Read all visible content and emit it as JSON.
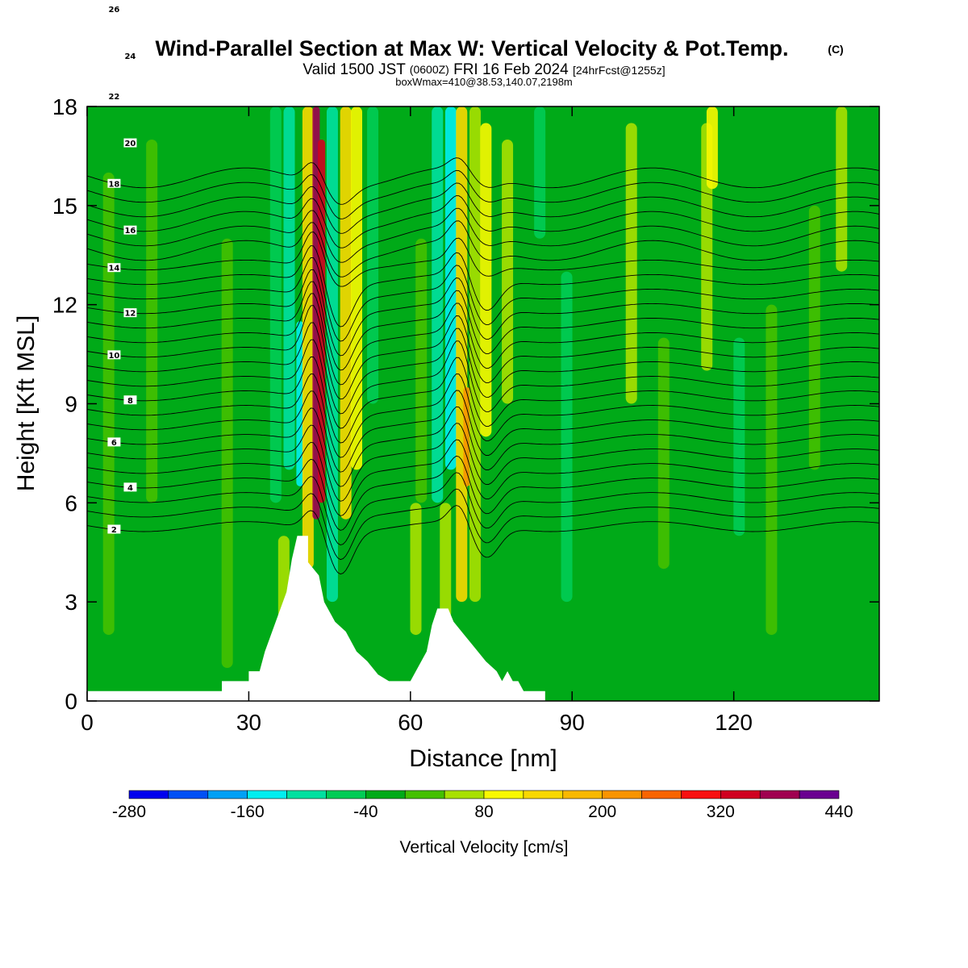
{
  "title": "Wind-Parallel Section at Max W: Vertical Velocity & Pot.Temp.",
  "title_mark": "(C)",
  "subtitle_valid": "Valid 1500 JST",
  "subtitle_z": "(0600Z)",
  "subtitle_date": "FRI 16 Feb 2024",
  "subtitle_fcst": "[24hrFcst@1255z]",
  "subtitle_box": "boxWmax=410@38.53,140.07,2198m",
  "colorbar": {
    "title": "Vertical Velocity [cm/s]",
    "tick_labels": [
      "-280",
      "-160",
      "-40",
      "80",
      "200",
      "320",
      "440"
    ],
    "colors": [
      "#0000ee",
      "#0050f5",
      "#00a0f5",
      "#00eef0",
      "#00e0a0",
      "#00cc55",
      "#00aa18",
      "#44c000",
      "#a8e000",
      "#f8f800",
      "#f8d800",
      "#f8b800",
      "#f89400",
      "#f86400",
      "#f81010",
      "#d00020",
      "#a00050",
      "#6a0090"
    ]
  },
  "chart_data": {
    "type": "heatmap",
    "title": "Wind-Parallel Section at Max W: Vertical Velocity & Pot.Temp.",
    "xlabel": "Distance [nm]",
    "ylabel": "Height [Kft MSL]",
    "xlim": [
      0,
      147
    ],
    "ylim": [
      0,
      18
    ],
    "x_ticks": [
      0,
      30,
      60,
      90,
      120
    ],
    "y_ticks": [
      0,
      3,
      6,
      9,
      12,
      15,
      18
    ],
    "colorbar_range": [
      -280,
      440
    ],
    "colorbar_step": 40,
    "background_value": -20,
    "w_columns": [
      {
        "x": 4,
        "value": 10,
        "from": 2,
        "to": 16
      },
      {
        "x": 12,
        "value": 10,
        "from": 6,
        "to": 17
      },
      {
        "x": 26,
        "value": 10,
        "from": 1,
        "to": 14
      },
      {
        "x": 35,
        "value": -60,
        "from": 6,
        "to": 18
      },
      {
        "x": 36.5,
        "value": 60,
        "from": 1,
        "to": 5
      },
      {
        "x": 37.5,
        "value": -100,
        "from": 7,
        "to": 18
      },
      {
        "x": 39.5,
        "value": -160,
        "from": 6.5,
        "to": 11.5
      },
      {
        "x": 41,
        "value": 150,
        "from": 4,
        "to": 18
      },
      {
        "x": 42.5,
        "value": 380,
        "from": 5.5,
        "to": 18
      },
      {
        "x": 43.5,
        "value": 320,
        "from": 6,
        "to": 17
      },
      {
        "x": 45.5,
        "value": -100,
        "from": 3,
        "to": 18
      },
      {
        "x": 48,
        "value": 120,
        "from": 5.5,
        "to": 18
      },
      {
        "x": 50,
        "value": 100,
        "from": 7,
        "to": 18
      },
      {
        "x": 53,
        "value": -60,
        "from": 9,
        "to": 18
      },
      {
        "x": 61,
        "value": 40,
        "from": 2,
        "to": 6
      },
      {
        "x": 62,
        "value": 10,
        "from": 6,
        "to": 14
      },
      {
        "x": 65,
        "value": -100,
        "from": 6,
        "to": 18
      },
      {
        "x": 66.5,
        "value": 40,
        "from": 2.5,
        "to": 6
      },
      {
        "x": 67.5,
        "value": -140,
        "from": 7,
        "to": 18
      },
      {
        "x": 69.5,
        "value": 120,
        "from": 3,
        "to": 18
      },
      {
        "x": 70.5,
        "value": 220,
        "from": 6.5,
        "to": 9.5
      },
      {
        "x": 72,
        "value": 60,
        "from": 3,
        "to": 18
      },
      {
        "x": 74,
        "value": 80,
        "from": 8,
        "to": 17.5
      },
      {
        "x": 78,
        "value": 40,
        "from": 9,
        "to": 17
      },
      {
        "x": 84,
        "value": -60,
        "from": 14,
        "to": 18
      },
      {
        "x": 89,
        "value": -60,
        "from": 3,
        "to": 13
      },
      {
        "x": 101,
        "value": 40,
        "from": 9,
        "to": 17.5
      },
      {
        "x": 107,
        "value": 10,
        "from": 4,
        "to": 11
      },
      {
        "x": 115,
        "value": 40,
        "from": 10,
        "to": 17.5
      },
      {
        "x": 116,
        "value": 100,
        "from": 15.5,
        "to": 18
      },
      {
        "x": 121,
        "value": -60,
        "from": 5,
        "to": 11
      },
      {
        "x": 127,
        "value": 10,
        "from": 2,
        "to": 12
      },
      {
        "x": 135,
        "value": 10,
        "from": 7,
        "to": 15
      },
      {
        "x": 140,
        "value": 40,
        "from": 13,
        "to": 18
      }
    ],
    "terrain": [
      [
        0,
        0.3
      ],
      [
        25,
        0.3
      ],
      [
        25,
        0.6
      ],
      [
        30,
        0.6
      ],
      [
        30,
        0.9
      ],
      [
        32,
        0.9
      ],
      [
        33,
        1.5
      ],
      [
        35,
        2.4
      ],
      [
        37,
        3.3
      ],
      [
        38,
        4.3
      ],
      [
        39,
        5
      ],
      [
        41,
        5
      ],
      [
        41,
        4.2
      ],
      [
        43,
        3.8
      ],
      [
        44,
        3
      ],
      [
        46,
        2.4
      ],
      [
        48,
        2.1
      ],
      [
        50,
        1.5
      ],
      [
        52,
        1.2
      ],
      [
        54,
        0.8
      ],
      [
        56,
        0.6
      ],
      [
        58,
        0.6
      ],
      [
        60,
        0.6
      ],
      [
        61,
        0.9
      ],
      [
        62,
        1.2
      ],
      [
        63,
        1.5
      ],
      [
        64,
        2.3
      ],
      [
        65,
        2.8
      ],
      [
        67,
        2.8
      ],
      [
        68,
        2.4
      ],
      [
        70,
        2
      ],
      [
        72,
        1.6
      ],
      [
        74,
        1.2
      ],
      [
        76,
        0.9
      ],
      [
        77,
        0.6
      ],
      [
        78,
        0.9
      ],
      [
        79,
        0.6
      ],
      [
        80,
        0.6
      ],
      [
        81,
        0.3
      ],
      [
        85,
        0.3
      ],
      [
        85,
        0
      ],
      [
        147,
        0
      ],
      [
        147,
        0.3
      ]
    ],
    "theta_contours": {
      "unit": "K (offset)",
      "levels": [
        2,
        4,
        6,
        8,
        10,
        12,
        14,
        16,
        18,
        20,
        22,
        24,
        26
      ],
      "labels": [
        "2",
        "4",
        "6",
        "8",
        "10",
        "12",
        "14",
        "16",
        "18",
        "20",
        "22",
        "24",
        "26"
      ]
    }
  }
}
